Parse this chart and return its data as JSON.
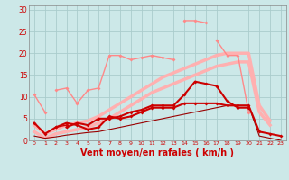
{
  "background_color": "#cce8e8",
  "grid_color": "#aacccc",
  "xlabel": "Vent moyen/en rafales ( km/h )",
  "xlabel_color": "#cc0000",
  "xlabel_fontsize": 7,
  "ylabel_ticks": [
    0,
    5,
    10,
    15,
    20,
    25,
    30
  ],
  "xlim": [
    -0.5,
    23.5
  ],
  "ylim": [
    0,
    31
  ],
  "x": [
    0,
    1,
    2,
    3,
    4,
    5,
    6,
    7,
    8,
    9,
    10,
    11,
    12,
    13,
    14,
    15,
    16,
    17,
    18,
    19,
    20,
    21,
    22,
    23
  ],
  "lines": [
    {
      "y": [
        3.5,
        1.5,
        2.5,
        3.5,
        4.0,
        4.5,
        5.5,
        7.0,
        8.5,
        10.0,
        11.5,
        13.0,
        14.5,
        15.5,
        16.5,
        17.5,
        18.5,
        19.5,
        20.0,
        20.0,
        20.0,
        8.0,
        4.5,
        null
      ],
      "color": "#ffb0b0",
      "lw": 2.5,
      "marker": null,
      "ms": 0,
      "linestyle": "-",
      "zorder": 1
    },
    {
      "y": [
        2.0,
        0.5,
        1.5,
        2.0,
        2.5,
        3.0,
        4.0,
        5.0,
        6.5,
        8.0,
        9.5,
        11.0,
        12.0,
        13.0,
        14.0,
        15.0,
        16.0,
        17.0,
        17.5,
        18.0,
        18.0,
        6.5,
        3.5,
        null
      ],
      "color": "#ffb0b0",
      "lw": 2.5,
      "marker": null,
      "ms": 0,
      "linestyle": "-",
      "zorder": 1
    },
    {
      "y": [
        10.5,
        6.5,
        null,
        null,
        null,
        null,
        null,
        null,
        null,
        null,
        null,
        null,
        null,
        null,
        null,
        null,
        null,
        null,
        null,
        null,
        null,
        null,
        null,
        null
      ],
      "color": "#ff8888",
      "lw": 1.0,
      "marker": "D",
      "ms": 2.0,
      "linestyle": "-",
      "zorder": 3
    },
    {
      "y": [
        null,
        null,
        11.5,
        12.0,
        8.5,
        11.5,
        12.0,
        19.5,
        19.5,
        18.5,
        19.0,
        19.5,
        19.0,
        18.5,
        null,
        null,
        null,
        null,
        null,
        null,
        null,
        null,
        null,
        null
      ],
      "color": "#ff8888",
      "lw": 1.0,
      "marker": "D",
      "ms": 2.0,
      "linestyle": "-",
      "zorder": 3
    },
    {
      "y": [
        null,
        null,
        null,
        null,
        null,
        null,
        null,
        null,
        null,
        null,
        null,
        null,
        null,
        null,
        27.5,
        27.5,
        27.0,
        null,
        null,
        null,
        null,
        null,
        null,
        null
      ],
      "color": "#ff8888",
      "lw": 1.0,
      "marker": "D",
      "ms": 2.0,
      "linestyle": "-",
      "zorder": 3
    },
    {
      "y": [
        null,
        null,
        null,
        null,
        null,
        null,
        null,
        null,
        null,
        null,
        null,
        null,
        null,
        null,
        null,
        null,
        null,
        23.0,
        19.5,
        19.5,
        6.5,
        null,
        null,
        null
      ],
      "color": "#ff8888",
      "lw": 1.0,
      "marker": "D",
      "ms": 2.0,
      "linestyle": "-",
      "zorder": 3
    },
    {
      "y": [
        1.0,
        0.5,
        0.8,
        1.2,
        1.5,
        1.8,
        2.0,
        2.5,
        3.0,
        3.5,
        4.0,
        4.5,
        5.0,
        5.5,
        6.0,
        6.5,
        7.0,
        7.5,
        8.0,
        8.0,
        8.0,
        1.0,
        0.5,
        0.0
      ],
      "color": "#990000",
      "lw": 0.8,
      "marker": null,
      "ms": 0,
      "linestyle": "-",
      "zorder": 2
    },
    {
      "y": [
        4.0,
        1.5,
        3.0,
        4.0,
        3.5,
        2.5,
        3.0,
        5.5,
        5.0,
        5.5,
        6.5,
        7.5,
        7.5,
        7.5,
        8.5,
        8.5,
        8.5,
        8.5,
        8.0,
        8.0,
        8.0,
        2.0,
        1.5,
        1.0
      ],
      "color": "#cc0000",
      "lw": 1.5,
      "marker": "D",
      "ms": 2.0,
      "linestyle": "-",
      "zorder": 4
    },
    {
      "y": [
        null,
        null,
        null,
        3.0,
        4.0,
        3.5,
        5.0,
        5.0,
        5.5,
        6.5,
        7.0,
        8.0,
        8.0,
        8.0,
        10.5,
        13.5,
        13.0,
        12.5,
        9.0,
        7.5,
        7.5,
        null,
        null,
        null
      ],
      "color": "#cc0000",
      "lw": 1.5,
      "marker": "D",
      "ms": 2.0,
      "linestyle": "-",
      "zorder": 4
    },
    {
      "y": [
        null,
        null,
        3.0,
        3.5,
        null,
        null,
        null,
        null,
        null,
        null,
        null,
        null,
        null,
        null,
        null,
        null,
        null,
        null,
        null,
        null,
        null,
        null,
        null,
        null
      ],
      "color": "#cc0000",
      "lw": 1.0,
      "marker": "D",
      "ms": 2.0,
      "linestyle": "-",
      "zorder": 4
    }
  ]
}
